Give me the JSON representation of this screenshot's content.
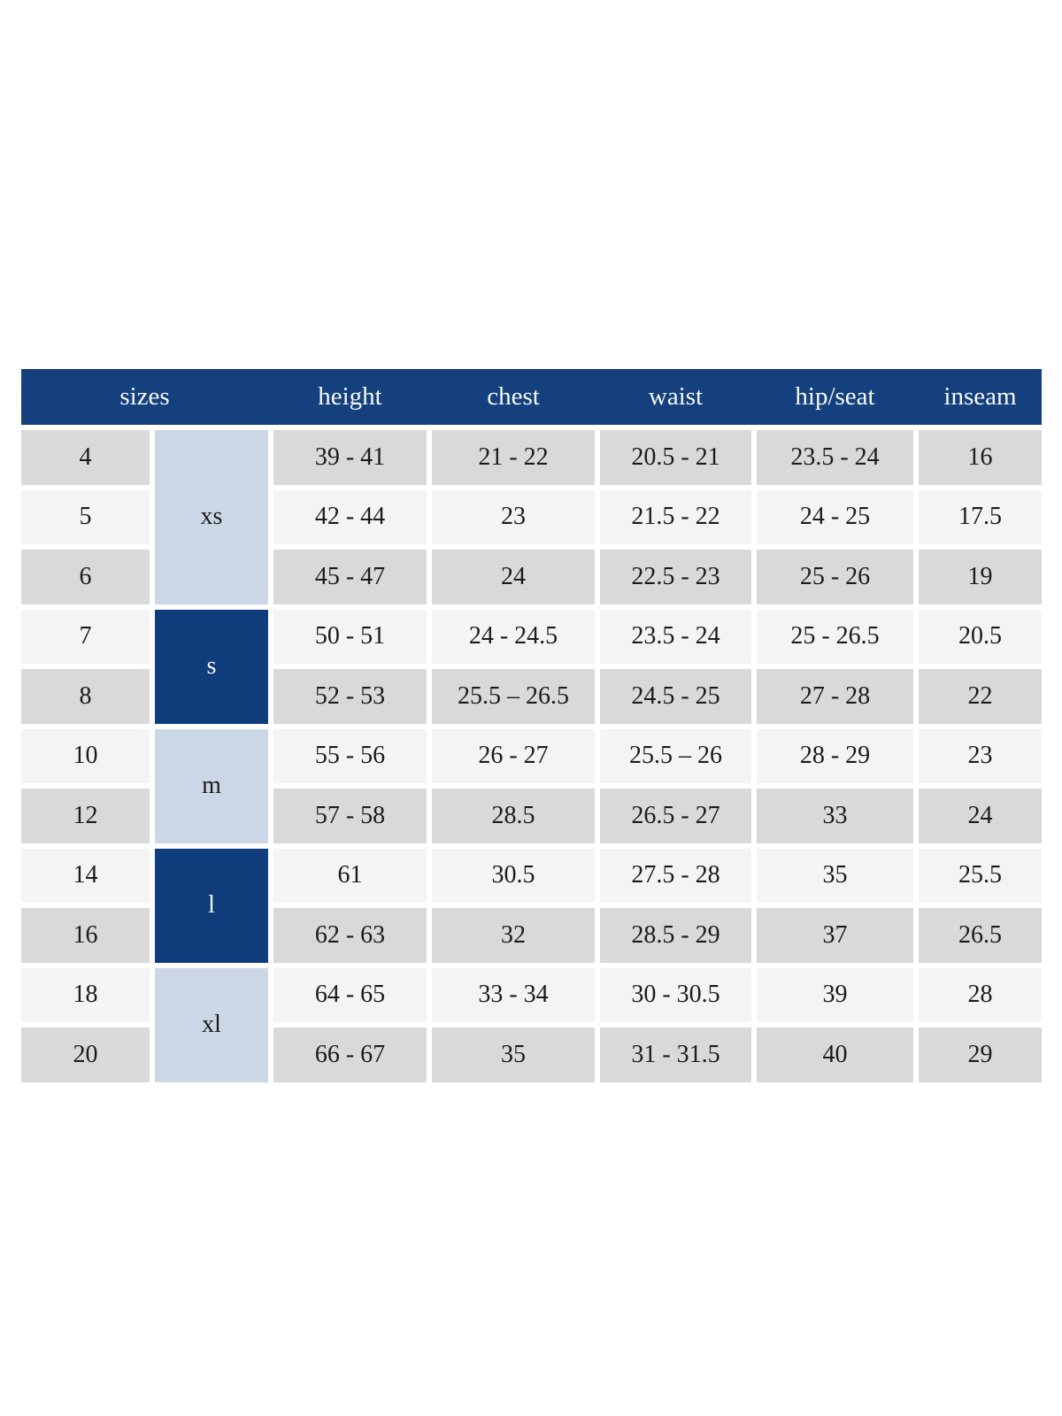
{
  "table": {
    "headers": [
      "sizes",
      "height",
      "chest",
      "waist",
      "hip/seat",
      "inseam"
    ],
    "groups": [
      {
        "label": "xs",
        "row_span": 3,
        "style": "light"
      },
      {
        "label": "s",
        "row_span": 2,
        "style": "dark"
      },
      {
        "label": "m",
        "row_span": 2,
        "style": "light"
      },
      {
        "label": "l",
        "row_span": 2,
        "style": "dark"
      },
      {
        "label": "xl",
        "row_span": 2,
        "style": "light"
      }
    ],
    "rows": [
      {
        "size": "4",
        "group": "xs",
        "height": "39 - 41",
        "chest": "21 - 22",
        "waist": "20.5 - 21",
        "hip_seat": "23.5 - 24",
        "inseam": "16"
      },
      {
        "size": "5",
        "group": "xs",
        "height": "42 - 44",
        "chest": "23",
        "waist": "21.5 - 22",
        "hip_seat": "24 - 25",
        "inseam": "17.5"
      },
      {
        "size": "6",
        "group": "xs",
        "height": "45 - 47",
        "chest": "24",
        "waist": "22.5 - 23",
        "hip_seat": "25 - 26",
        "inseam": "19"
      },
      {
        "size": "7",
        "group": "s",
        "height": "50 - 51",
        "chest": "24 - 24.5",
        "waist": "23.5 - 24",
        "hip_seat": "25 - 26.5",
        "inseam": "20.5"
      },
      {
        "size": "8",
        "group": "s",
        "height": "52 - 53",
        "chest": "25.5 – 26.5",
        "waist": "24.5 - 25",
        "hip_seat": "27 - 28",
        "inseam": "22"
      },
      {
        "size": "10",
        "group": "m",
        "height": "55 - 56",
        "chest": "26 - 27",
        "waist": "25.5 – 26",
        "hip_seat": "28 - 29",
        "inseam": "23"
      },
      {
        "size": "12",
        "group": "m",
        "height": "57 - 58",
        "chest": "28.5",
        "waist": "26.5 - 27",
        "hip_seat": "33",
        "inseam": "24"
      },
      {
        "size": "14",
        "group": "l",
        "height": "61",
        "chest": "30.5",
        "waist": "27.5 - 28",
        "hip_seat": "35",
        "inseam": "25.5"
      },
      {
        "size": "16",
        "group": "l",
        "height": "62 - 63",
        "chest": "32",
        "waist": "28.5 - 29",
        "hip_seat": "37",
        "inseam": "26.5"
      },
      {
        "size": "18",
        "group": "xl",
        "height": "64 - 65",
        "chest": "33 - 34",
        "waist": "30 - 30.5",
        "hip_seat": "39",
        "inseam": "28"
      },
      {
        "size": "20",
        "group": "xl",
        "height": "66 - 67",
        "chest": "35",
        "waist": "31 - 31.5",
        "hip_seat": "40",
        "inseam": "29"
      }
    ],
    "colors": {
      "header_bg": "#14407e",
      "header_text": "#f8f8f6",
      "group_dark_bg": "#0f3d7c",
      "group_dark_text": "#f5f6f8",
      "group_light_bg": "#cbd7e6",
      "row_gray_bg": "#d9d9d9",
      "row_light_bg": "#f4f4f4",
      "body_text": "#1b1b1b",
      "page_bg": "#ffffff"
    }
  }
}
